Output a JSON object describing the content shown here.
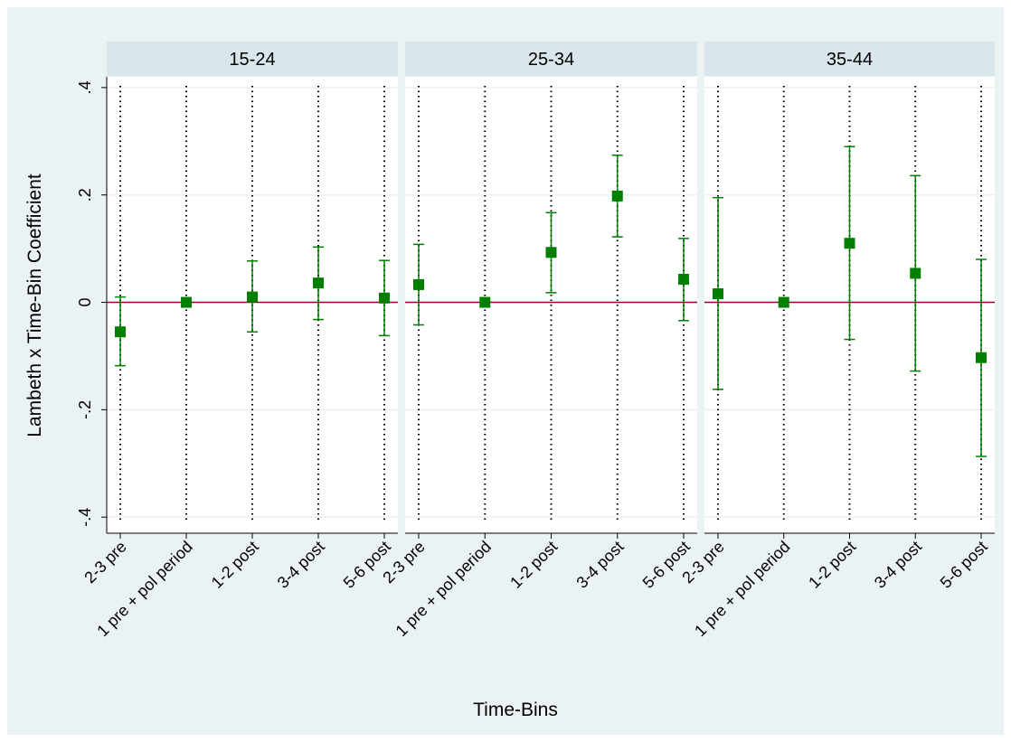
{
  "axis_titles": {
    "y": "Lambeth x Time-Bin Coefficient",
    "x": "Time-Bins"
  },
  "y_axis": {
    "ylim": [
      -0.43,
      0.42
    ],
    "yticks": [
      {
        "value": -0.4,
        "label": "-.4"
      },
      {
        "value": -0.2,
        "label": "-.2"
      },
      0,
      {
        "value": 0.2,
        "label": ".2"
      },
      {
        "value": 0.4,
        "label": ".4"
      }
    ],
    "grid": true,
    "reference_line": 0,
    "reference_color": "#990033"
  },
  "chart_data": [
    {
      "type": "errorbar",
      "title": "15-24",
      "color": "#007f00",
      "categories": [
        "2-3 pre",
        "1 pre + pol period",
        "1-2 post",
        "3-4 post",
        "5-6 post"
      ],
      "values": [
        -0.055,
        0,
        0.01,
        0.036,
        0.008
      ],
      "lower": [
        -0.118,
        0,
        -0.055,
        -0.032,
        -0.062
      ],
      "upper": [
        0.01,
        0,
        0.077,
        0.103,
        0.078
      ]
    },
    {
      "type": "errorbar",
      "title": "25-34",
      "color": "#007f00",
      "categories": [
        "2-3 pre",
        "1 pre + pol period",
        "1-2 post",
        "3-4 post",
        "5-6 post"
      ],
      "values": [
        0.033,
        0,
        0.093,
        0.198,
        0.043
      ],
      "lower": [
        -0.042,
        0,
        0.018,
        0.122,
        -0.034
      ],
      "upper": [
        0.108,
        0,
        0.167,
        0.274,
        0.119
      ]
    },
    {
      "type": "errorbar",
      "title": "35-44",
      "color": "#007f00",
      "categories": [
        "2-3 pre",
        "1 pre + pol period",
        "1-2 post",
        "3-4 post",
        "5-6 post"
      ],
      "values": [
        0.016,
        0,
        0.11,
        0.054,
        -0.103
      ],
      "lower": [
        -0.162,
        0,
        -0.069,
        -0.128,
        -0.287
      ],
      "upper": [
        0.195,
        0,
        0.29,
        0.236,
        0.08
      ]
    }
  ]
}
